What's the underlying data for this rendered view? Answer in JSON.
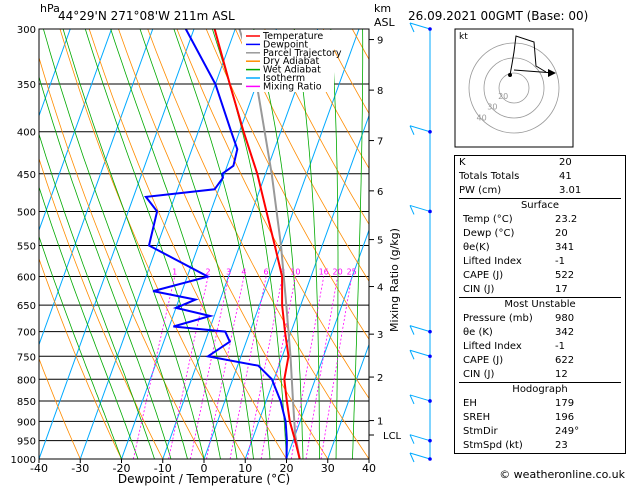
{
  "header": {
    "hpa_label": "hPa",
    "location": "44°29'N  271°08'W  211m  ASL",
    "km_label": "km",
    "asl_label": "ASL",
    "datetime": "26.09.2021  00GMT  (Base: 00)"
  },
  "chart_data": {
    "type": "skewt",
    "xlabel": "Dewpoint / Temperature (°C)",
    "ylabel_right": "Mixing Ratio (g/kg)",
    "pressure_levels": [
      300,
      350,
      400,
      450,
      500,
      550,
      600,
      650,
      700,
      750,
      800,
      850,
      900,
      950,
      1000
    ],
    "temp_ticks": [
      -40,
      -30,
      -20,
      -10,
      0,
      10,
      20,
      30,
      40
    ],
    "km_ticks": [
      {
        "km": "9",
        "p": 309
      },
      {
        "km": "8",
        "p": 356
      },
      {
        "km": "7",
        "p": 410
      },
      {
        "km": "6",
        "p": 472
      },
      {
        "km": "5",
        "p": 541
      },
      {
        "km": "4",
        "p": 617
      },
      {
        "km": "3",
        "p": 705
      },
      {
        "km": "2",
        "p": 795
      },
      {
        "km": "1",
        "p": 898
      }
    ],
    "lcl": {
      "label": "LCL",
      "p": 935
    },
    "mixing_ratio_labels": [
      "1",
      "2",
      "3",
      "4",
      "6",
      "8",
      "10",
      "16",
      "20",
      "25"
    ],
    "mixing_ratio_values": [
      1,
      2,
      3,
      4,
      6,
      8,
      10,
      16,
      20,
      25
    ],
    "legend": [
      {
        "name": "Temperature",
        "color": "#ff0000"
      },
      {
        "name": "Dewpoint",
        "color": "#0000ff"
      },
      {
        "name": "Parcel Trajectory",
        "color": "#999999"
      },
      {
        "name": "Dry Adiabat",
        "color": "#ff8c00"
      },
      {
        "name": "Wet Adiabat",
        "color": "#00aa00"
      },
      {
        "name": "Isotherm",
        "color": "#00aaff"
      },
      {
        "name": "Mixing Ratio",
        "color": "#ff00ff"
      }
    ],
    "temperature": [
      {
        "p": 1000,
        "t": 23.2
      },
      {
        "p": 950,
        "t": 20.5
      },
      {
        "p": 900,
        "t": 17.5
      },
      {
        "p": 850,
        "t": 15.0
      },
      {
        "p": 800,
        "t": 12.5
      },
      {
        "p": 750,
        "t": 11.5
      },
      {
        "p": 700,
        "t": 8.5
      },
      {
        "p": 650,
        "t": 5.5
      },
      {
        "p": 600,
        "t": 3.0
      },
      {
        "p": 550,
        "t": -1.5
      },
      {
        "p": 500,
        "t": -6.5
      },
      {
        "p": 450,
        "t": -12.0
      },
      {
        "p": 400,
        "t": -19.0
      },
      {
        "p": 350,
        "t": -26.5
      },
      {
        "p": 300,
        "t": -35.0
      }
    ],
    "dewpoint": [
      {
        "p": 1000,
        "t": 20
      },
      {
        "p": 950,
        "t": 18.5
      },
      {
        "p": 900,
        "t": 16.5
      },
      {
        "p": 850,
        "t": 13.5
      },
      {
        "p": 800,
        "t": 9.5
      },
      {
        "p": 770,
        "t": 5.0
      },
      {
        "p": 750,
        "t": -8.0
      },
      {
        "p": 720,
        "t": -4.0
      },
      {
        "p": 700,
        "t": -6.0
      },
      {
        "p": 690,
        "t": -19.0
      },
      {
        "p": 670,
        "t": -11.0
      },
      {
        "p": 655,
        "t": -20.0
      },
      {
        "p": 640,
        "t": -16.0
      },
      {
        "p": 625,
        "t": -27.0
      },
      {
        "p": 600,
        "t": -15.0
      },
      {
        "p": 550,
        "t": -32.0
      },
      {
        "p": 500,
        "t": -33.0
      },
      {
        "p": 480,
        "t": -37.0
      },
      {
        "p": 470,
        "t": -21.0
      },
      {
        "p": 455,
        "t": -20.0
      },
      {
        "p": 450,
        "t": -20.5
      },
      {
        "p": 440,
        "t": -18.5
      },
      {
        "p": 420,
        "t": -19.0
      },
      {
        "p": 400,
        "t": -22.0
      },
      {
        "p": 350,
        "t": -30.0
      },
      {
        "p": 300,
        "t": -42.0
      }
    ],
    "parcel": [
      {
        "p": 1000,
        "t": 23.2
      },
      {
        "p": 935,
        "t": 20.0
      },
      {
        "p": 850,
        "t": 16.5
      },
      {
        "p": 750,
        "t": 12.0
      },
      {
        "p": 650,
        "t": 6.5
      },
      {
        "p": 550,
        "t": 0.0
      },
      {
        "p": 450,
        "t": -8.5
      },
      {
        "p": 350,
        "t": -20.0
      },
      {
        "p": 300,
        "t": -29.0
      }
    ],
    "wind_barbs_p": [
      300,
      400,
      500,
      700,
      750,
      850,
      950,
      1000
    ]
  },
  "hodograph": {
    "unit_label": "kt",
    "ring_labels": [
      "40",
      "30",
      "20"
    ]
  },
  "indices": [
    {
      "label": "K",
      "value": "20"
    },
    {
      "label": "Totals Totals",
      "value": "41"
    },
    {
      "label": "PW (cm)",
      "value": "3.01"
    }
  ],
  "surface": {
    "title": "Surface",
    "rows": [
      {
        "label": "Temp (°C)",
        "value": "23.2"
      },
      {
        "label": "Dewp (°C)",
        "value": "20"
      },
      {
        "label": "θe(K)",
        "value": "341"
      },
      {
        "label": "Lifted Index",
        "value": "-1"
      },
      {
        "label": "CAPE (J)",
        "value": "522"
      },
      {
        "label": "CIN (J)",
        "value": "17"
      }
    ]
  },
  "most_unstable": {
    "title": "Most Unstable",
    "rows": [
      {
        "label": "Pressure (mb)",
        "value": "980"
      },
      {
        "label": "θe (K)",
        "value": "342"
      },
      {
        "label": "Lifted Index",
        "value": "-1"
      },
      {
        "label": "CAPE (J)",
        "value": "622"
      },
      {
        "label": "CIN (J)",
        "value": "12"
      }
    ]
  },
  "hodograph_table": {
    "title": "Hodograph",
    "rows": [
      {
        "label": "EH",
        "value": "179"
      },
      {
        "label": "SREH",
        "value": "196"
      },
      {
        "label": "StmDir",
        "value": "249°"
      },
      {
        "label": "StmSpd (kt)",
        "value": "23"
      }
    ]
  },
  "footer": "© weatheronline.co.uk"
}
